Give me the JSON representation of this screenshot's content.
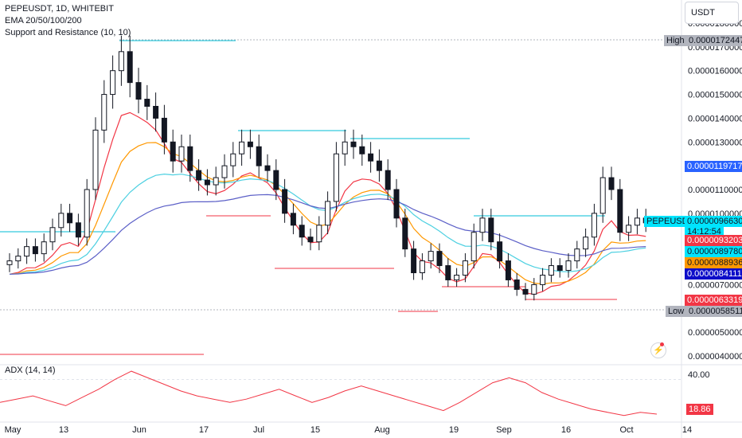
{
  "legend": {
    "symbol": "PEPEUSDT, 1D, WHITEBIT",
    "ema": "EMA 20/50/100/200",
    "sr": "Support and Resistance (10, 10)"
  },
  "adx_label": "ADX (14, 14)",
  "currency_button": "USDT",
  "price_tags": {
    "high_label": "High",
    "high_value": "0.0000172447",
    "low_label": "Low",
    "low_value": "0.0000058511",
    "blue_value": "0.0000119717",
    "symbol_label": "PEPEUSDT",
    "last_value": "0.0000096630",
    "countdown": "14:12:54",
    "ema20_value": "0.0000093203",
    "ema50_value": "0.0000089780",
    "ema100_value": "0.0000088936",
    "ema200_value": "0.0000084111",
    "red_value": "0.0000063319"
  },
  "price_axis_ticks": [
    "0.0000180000",
    "0.0000170000",
    "0.0000160000",
    "0.0000150000",
    "0.0000140000",
    "0.0000130000",
    "0.0000110000",
    "0.0000100000",
    "0.0000070000",
    "0.0000050000",
    "0.0000040000"
  ],
  "adx_axis": {
    "tick": "40.00",
    "current": "18.86"
  },
  "time_axis": [
    "May",
    "13",
    "Jun",
    "17",
    "Jul",
    "15",
    "Aug",
    "19",
    "Sep",
    "16",
    "Oct",
    "14"
  ],
  "colors": {
    "up": "#131722",
    "down": "#131722",
    "ema20": "#f23645",
    "ema50": "#ff9800",
    "ema100": "#4dd0e1",
    "ema200": "#5b5fc7",
    "resistance": "#00bcd4",
    "support": "#f23645",
    "adx": "#f23645",
    "blue_tag": "#2962ff",
    "cyan_tag": "#00e5ff",
    "orange_tag": "#ff9800",
    "navy_tag": "#0d0dc9",
    "red_tag": "#f23645",
    "grey_tag": "#b2b5be"
  },
  "chart_data": {
    "type": "candlestick",
    "title": "PEPEUSDT, 1D, WHITEBIT",
    "x_labels": [
      "May",
      "13",
      "Jun",
      "17",
      "Jul",
      "15",
      "Aug",
      "19",
      "Sep",
      "16",
      "Oct",
      "14"
    ],
    "ylim": [
      4e-06,
      1.8e-05
    ],
    "high": 1.72447e-05,
    "low": 5.8511e-06,
    "last": 9.663e-06,
    "ema": {
      "ema20": 9.3203e-06,
      "ema50": 8.978e-06,
      "ema100": 8.8936e-06,
      "ema200": 8.4111e-06
    },
    "close_path": [
      8e-06,
      8.2e-06,
      8.6e-06,
      8.3e-06,
      8.8e-06,
      9.4e-06,
      1e-05,
      9.6e-06,
      9e-06,
      1.1e-05,
      1.35e-05,
      1.5e-05,
      1.6e-05,
      1.68e-05,
      1.55e-05,
      1.48e-05,
      1.45e-05,
      1.4e-05,
      1.3e-05,
      1.22e-05,
      1.28e-05,
      1.18e-05,
      1.14e-05,
      1.12e-05,
      1.15e-05,
      1.2e-05,
      1.25e-05,
      1.3e-05,
      1.28e-05,
      1.2e-05,
      1.18e-05,
      1.1e-05,
      1e-05,
      9.5e-06,
      9e-06,
      8.8e-06,
      9.5e-06,
      1.05e-05,
      1.25e-05,
      1.3e-05,
      1.28e-05,
      1.25e-05,
      1.22e-05,
      1.18e-05,
      1.1e-05,
      9.8e-06,
      8.5e-06,
      7.5e-06,
      8e-06,
      8.4e-06,
      7.8e-06,
      7.2e-06,
      7.4e-06,
      8e-06,
      9.2e-06,
      9.8e-06,
      8.8e-06,
      8e-06,
      7.2e-06,
      6.8e-06,
      6.6e-06,
      7e-06,
      7.4e-06,
      7.8e-06,
      7.6e-06,
      8e-06,
      8.5e-06,
      9e-06,
      1e-05,
      1.15e-05,
      1.1e-05,
      9.2e-06,
      9.5e-06,
      9.8e-06,
      9.6e-06
    ],
    "adx_path": [
      26,
      28,
      30,
      27,
      24,
      29,
      34,
      40,
      45,
      41,
      37,
      33,
      30,
      28,
      26,
      28,
      31,
      34,
      30,
      26,
      29,
      33,
      36,
      33,
      30,
      27,
      24,
      21,
      26,
      32,
      38,
      41,
      38,
      32,
      28,
      25,
      22,
      20,
      18,
      20,
      18.86
    ]
  }
}
